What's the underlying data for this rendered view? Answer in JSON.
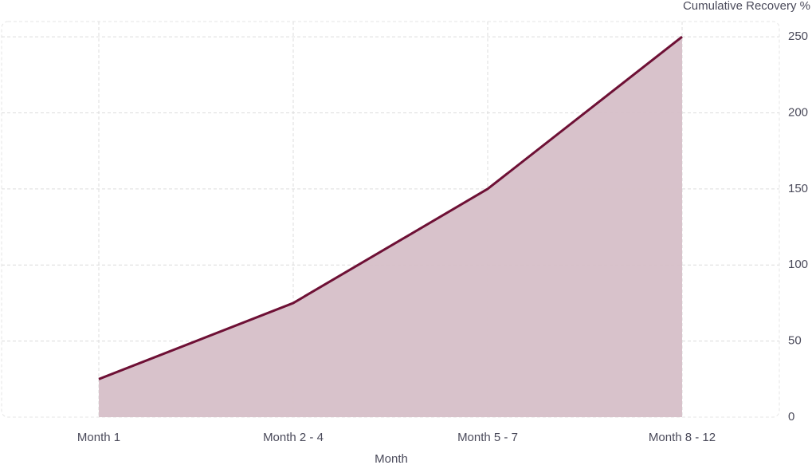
{
  "chart_data": {
    "type": "area",
    "x_label": "Month",
    "y_label": "Cumulative Recovery %",
    "categories": [
      "Month 1",
      "Month 2 - 4",
      "Month 5 - 7",
      "Month 8 - 12"
    ],
    "values": [
      25,
      75,
      150,
      250
    ],
    "color": "#6e1035",
    "fill_color": "#d6bfc8",
    "ylim": [
      0,
      260
    ],
    "yticks": [
      0,
      50,
      100,
      150,
      200,
      250
    ],
    "grid": true,
    "y_axis_side": "right"
  }
}
